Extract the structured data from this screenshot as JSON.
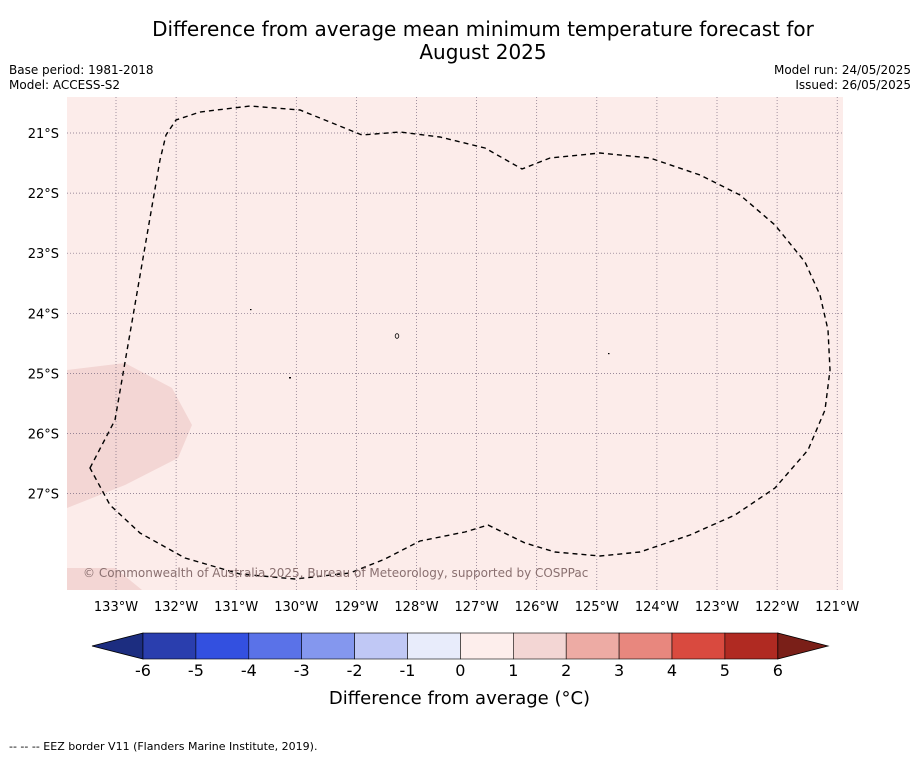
{
  "title_line1": "Difference from average mean minimum temperature forecast for",
  "title_line2": "August 2025",
  "meta_left": {
    "base_period": "Base period: 1981-2018",
    "model": "Model: ACCESS-S2"
  },
  "meta_right": {
    "model_run": "Model run: 24/05/2025",
    "issued": "Issued: 26/05/2025"
  },
  "copyright": "© Commonwealth of Australia 2025, Bureau of Meteorology, supported by COSPPac",
  "lon_labels": [
    "133°W",
    "132°W",
    "131°W",
    "130°W",
    "129°W",
    "128°W",
    "127°W",
    "126°W",
    "125°W",
    "124°W",
    "123°W",
    "122°W",
    "121°W"
  ],
  "lat_labels": [
    "21°S",
    "22°S",
    "23°S",
    "24°S",
    "25°S",
    "26°S",
    "27°S"
  ],
  "colorbar": {
    "title": "Difference from average (",
    "title_unit": "°C)",
    "ticks": [
      "-6",
      "-5",
      "-4",
      "-3",
      "-2",
      "-1",
      "0",
      "1",
      "2",
      "3",
      "4",
      "5",
      "6"
    ],
    "colors": [
      "#2a3eae",
      "#3350e0",
      "#5a72e8",
      "#8497ee",
      "#c0c8f5",
      "#e8ecfb",
      "#fdeeec",
      "#f3d6d4",
      "#edaba4",
      "#e8877e",
      "#d94a3f",
      "#b02a22"
    ],
    "under_color": "#1c2d80",
    "over_color": "#7a1f18"
  },
  "map": {
    "background_anomaly_color": "#fcecea",
    "shaded_area_color": "#f3d6d4"
  },
  "footer": "--  --  -- EEZ border V11 (Flanders Marine Institute, 2019)."
}
